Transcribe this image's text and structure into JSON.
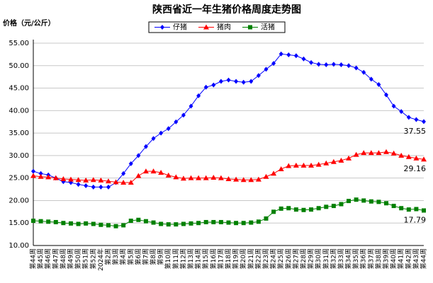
{
  "chart_data": {
    "type": "line",
    "title": "陕西省近一年生猪价格周度走势图",
    "y_label": "价格（元/公斤）",
    "categories": [
      "第44周",
      "第45周",
      "第46周",
      "第47周",
      "第48周",
      "第49周",
      "第50周",
      "第51周",
      "第52周",
      "2024年",
      "第2周",
      "第3周",
      "第4周",
      "第5周",
      "第6周",
      "第7周",
      "第8周",
      "第9周",
      "第10周",
      "第11周",
      "第12周",
      "第13周",
      "第14周",
      "第15周",
      "第16周",
      "第17周",
      "第18周",
      "第19周",
      "第20周",
      "第21周",
      "第22周",
      "第23周",
      "第24周",
      "第25周",
      "第26周",
      "第27周",
      "第28周",
      "第29周",
      "第30周",
      "第31周",
      "第32周",
      "第33周",
      "第34周",
      "第35周",
      "第36周",
      "第37周",
      "第38周",
      "第39周",
      "第40周",
      "第41周",
      "第42周",
      "第43周",
      "第44周"
    ],
    "series": [
      {
        "name": "仔猪",
        "color": "#0000ff",
        "marker": "diamond",
        "values": [
          26.5,
          26.0,
          25.7,
          25.0,
          24.2,
          24.0,
          23.6,
          23.3,
          23.0,
          23.0,
          23.0,
          24.0,
          26.0,
          28.2,
          30.0,
          32.0,
          33.8,
          35.0,
          36.0,
          37.5,
          39.0,
          41.0,
          43.3,
          45.2,
          45.7,
          46.5,
          46.8,
          46.5,
          46.3,
          46.5,
          47.8,
          49.2,
          50.5,
          52.6,
          52.4,
          52.2,
          51.5,
          50.7,
          50.3,
          50.2,
          50.3,
          50.2,
          50.0,
          49.5,
          48.5,
          47.0,
          45.8,
          43.5,
          41.0,
          39.8,
          38.5,
          38.0,
          37.55
        ]
      },
      {
        "name": "猪肉",
        "color": "#ff0000",
        "marker": "triangle",
        "values": [
          25.5,
          25.3,
          25.2,
          25.0,
          24.8,
          24.7,
          24.6,
          24.5,
          24.6,
          24.5,
          24.3,
          24.1,
          24.0,
          24.0,
          25.5,
          26.5,
          26.5,
          26.2,
          25.6,
          25.2,
          24.9,
          25.0,
          25.0,
          25.0,
          25.1,
          25.0,
          24.8,
          24.7,
          24.6,
          24.6,
          24.7,
          25.3,
          26.0,
          27.0,
          27.7,
          27.8,
          27.8,
          27.8,
          28.0,
          28.3,
          28.6,
          28.9,
          29.4,
          30.2,
          30.6,
          30.6,
          30.6,
          30.8,
          30.5,
          30.0,
          29.7,
          29.4,
          29.16
        ]
      },
      {
        "name": "活猪",
        "color": "#008000",
        "marker": "square",
        "values": [
          15.5,
          15.4,
          15.3,
          15.2,
          15.0,
          14.9,
          14.8,
          14.9,
          14.8,
          14.6,
          14.5,
          14.3,
          14.5,
          15.5,
          15.7,
          15.4,
          15.1,
          14.8,
          14.7,
          14.7,
          14.8,
          14.9,
          15.0,
          15.2,
          15.2,
          15.2,
          15.1,
          15.0,
          15.0,
          15.1,
          15.3,
          16.0,
          17.5,
          18.2,
          18.3,
          18.0,
          17.9,
          18.0,
          18.3,
          18.6,
          18.8,
          19.2,
          19.9,
          20.2,
          20.0,
          19.8,
          19.7,
          19.4,
          18.8,
          18.3,
          18.0,
          18.1,
          17.79
        ]
      }
    ],
    "ylim": [
      10,
      55
    ],
    "yticks": [
      {
        "value": 10,
        "label": "10.00"
      },
      {
        "value": 15,
        "label": "15.00"
      },
      {
        "value": 20,
        "label": "20.00"
      },
      {
        "value": 25,
        "label": "25.00"
      },
      {
        "value": 30,
        "label": "30.00"
      },
      {
        "value": 35,
        "label": "35.00"
      },
      {
        "value": 40,
        "label": "40.00"
      },
      {
        "value": 45,
        "label": "45.00"
      },
      {
        "value": 50,
        "label": "50.00"
      },
      {
        "value": 55,
        "label": "55.00"
      }
    ],
    "grid": true,
    "legend": "top"
  }
}
